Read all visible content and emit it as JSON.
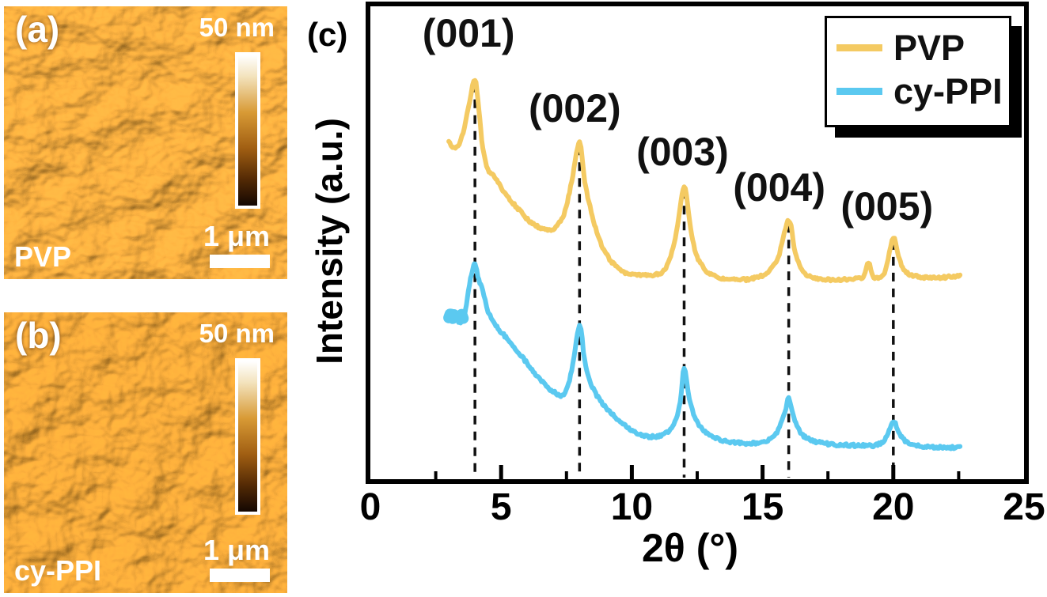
{
  "figure": {
    "panels": {
      "a": {
        "tag": "(a)",
        "sample": "PVP",
        "height_scale": "50 nm",
        "scale_bar": "1 μm"
      },
      "b": {
        "tag": "(b)",
        "sample": "cy-PPI",
        "height_scale": "50 nm",
        "scale_bar": "1 μm"
      },
      "c": {
        "tag": "(c)"
      }
    }
  },
  "chart_data": {
    "type": "line",
    "title": "",
    "xlabel": "2θ (°)",
    "ylabel": "Intensity (a.u.)",
    "xlim": [
      0,
      25
    ],
    "x_major_ticks": [
      0,
      5,
      10,
      15,
      20,
      25
    ],
    "x_minor_ticks": [
      2.5,
      7.5,
      12.5,
      17.5,
      22.5
    ],
    "grid": false,
    "y_axis_units": "a.u.",
    "legend": {
      "position": "top-right",
      "entries": [
        {
          "label": "PVP",
          "color": "#F4CA62"
        },
        {
          "label": "cy-PPI",
          "color": "#5BC9F0"
        }
      ]
    },
    "peaks": [
      {
        "label": "(001)",
        "two_theta": 4
      },
      {
        "label": "(002)",
        "two_theta": 8
      },
      {
        "label": "(003)",
        "two_theta": 12
      },
      {
        "label": "(004)",
        "two_theta": 16
      },
      {
        "label": "(005)",
        "two_theta": 20
      }
    ],
    "guide_lines_x": [
      4,
      8,
      12,
      16,
      20
    ],
    "series": [
      {
        "name": "PVP",
        "color": "#F4CA62",
        "x_unit": "deg",
        "y_unit": "normalized a.u.",
        "points": [
          [
            3.0,
            0.715
          ],
          [
            3.2,
            0.7
          ],
          [
            3.4,
            0.71
          ],
          [
            3.6,
            0.745
          ],
          [
            3.8,
            0.8
          ],
          [
            4.0,
            0.845
          ],
          [
            4.15,
            0.78
          ],
          [
            4.3,
            0.7
          ],
          [
            4.5,
            0.655
          ],
          [
            4.8,
            0.635
          ],
          [
            5.2,
            0.6
          ],
          [
            5.6,
            0.575
          ],
          [
            6.1,
            0.545
          ],
          [
            6.6,
            0.53
          ],
          [
            7.0,
            0.53
          ],
          [
            7.4,
            0.56
          ],
          [
            7.7,
            0.63
          ],
          [
            8.0,
            0.712
          ],
          [
            8.2,
            0.63
          ],
          [
            8.45,
            0.565
          ],
          [
            8.8,
            0.5
          ],
          [
            9.2,
            0.462
          ],
          [
            9.7,
            0.438
          ],
          [
            10.2,
            0.432
          ],
          [
            10.8,
            0.432
          ],
          [
            11.3,
            0.447
          ],
          [
            11.7,
            0.52
          ],
          [
            12.0,
            0.62
          ],
          [
            12.25,
            0.53
          ],
          [
            12.5,
            0.47
          ],
          [
            12.9,
            0.438
          ],
          [
            13.4,
            0.425
          ],
          [
            14.0,
            0.422
          ],
          [
            14.6,
            0.424
          ],
          [
            15.2,
            0.438
          ],
          [
            15.6,
            0.47
          ],
          [
            16.0,
            0.548
          ],
          [
            16.25,
            0.48
          ],
          [
            16.55,
            0.44
          ],
          [
            17.0,
            0.426
          ],
          [
            17.6,
            0.422
          ],
          [
            18.3,
            0.423
          ],
          [
            18.85,
            0.428
          ],
          [
            19.05,
            0.458
          ],
          [
            19.25,
            0.428
          ],
          [
            19.6,
            0.43
          ],
          [
            19.8,
            0.465
          ],
          [
            20.0,
            0.512
          ],
          [
            20.2,
            0.47
          ],
          [
            20.5,
            0.437
          ],
          [
            21.0,
            0.428
          ],
          [
            21.6,
            0.426
          ],
          [
            22.2,
            0.428
          ],
          [
            22.55,
            0.43
          ]
        ]
      },
      {
        "name": "cy-PPI",
        "color": "#5BC9F0",
        "x_unit": "deg",
        "y_unit": "normalized a.u.",
        "start_blob": true,
        "points": [
          [
            3.0,
            0.345
          ],
          [
            3.15,
            0.35
          ],
          [
            3.3,
            0.34
          ],
          [
            3.45,
            0.33
          ],
          [
            3.6,
            0.345
          ],
          [
            3.75,
            0.4
          ],
          [
            3.9,
            0.44
          ],
          [
            4.0,
            0.455
          ],
          [
            4.15,
            0.42
          ],
          [
            4.3,
            0.4
          ],
          [
            4.5,
            0.355
          ],
          [
            4.8,
            0.325
          ],
          [
            5.1,
            0.305
          ],
          [
            5.5,
            0.28
          ],
          [
            6.0,
            0.245
          ],
          [
            6.5,
            0.21
          ],
          [
            7.0,
            0.185
          ],
          [
            7.4,
            0.18
          ],
          [
            7.7,
            0.23
          ],
          [
            8.0,
            0.325
          ],
          [
            8.2,
            0.25
          ],
          [
            8.45,
            0.2
          ],
          [
            8.8,
            0.165
          ],
          [
            9.2,
            0.14
          ],
          [
            9.7,
            0.115
          ],
          [
            10.2,
            0.098
          ],
          [
            10.7,
            0.09
          ],
          [
            11.2,
            0.095
          ],
          [
            11.6,
            0.115
          ],
          [
            11.85,
            0.165
          ],
          [
            12.0,
            0.235
          ],
          [
            12.2,
            0.17
          ],
          [
            12.45,
            0.125
          ],
          [
            12.8,
            0.1
          ],
          [
            13.3,
            0.085
          ],
          [
            13.9,
            0.078
          ],
          [
            14.5,
            0.076
          ],
          [
            15.1,
            0.08
          ],
          [
            15.55,
            0.1
          ],
          [
            15.85,
            0.14
          ],
          [
            16.0,
            0.172
          ],
          [
            16.2,
            0.13
          ],
          [
            16.5,
            0.095
          ],
          [
            17.0,
            0.08
          ],
          [
            17.6,
            0.074
          ],
          [
            18.2,
            0.072
          ],
          [
            18.8,
            0.071
          ],
          [
            19.4,
            0.073
          ],
          [
            19.75,
            0.09
          ],
          [
            20.0,
            0.122
          ],
          [
            20.25,
            0.095
          ],
          [
            20.55,
            0.077
          ],
          [
            21.0,
            0.07
          ],
          [
            21.6,
            0.068
          ],
          [
            22.2,
            0.067
          ],
          [
            22.55,
            0.068
          ]
        ]
      }
    ]
  }
}
